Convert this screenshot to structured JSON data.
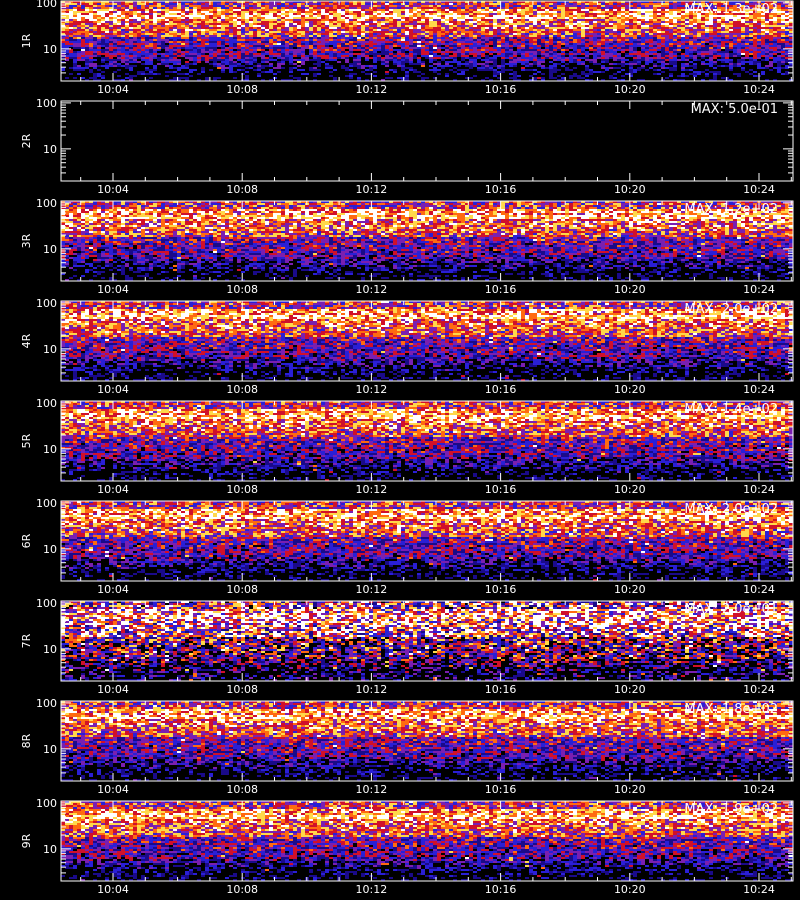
{
  "chart_data": {
    "type": "heatmap",
    "colors": {
      "background": "#000000",
      "axes": "#ffffff",
      "text": "#ffffff"
    },
    "colormap": [
      "#000000",
      "#1a0a8a",
      "#2a1fd6",
      "#7a1fb0",
      "#d0102a",
      "#ff6a10",
      "#ffd84a",
      "#ffffff"
    ],
    "x_ticks": [
      "10:04",
      "10:08",
      "10:12",
      "10:16",
      "10:20",
      "10:24"
    ],
    "y_scale": "log",
    "y_range": [
      2,
      110
    ],
    "y_ticks": [
      "10",
      "100"
    ],
    "footer": "",
    "panels": [
      {
        "label": "1R",
        "max_label": "MAX: 1.3e+02",
        "max": 130,
        "empty": false
      },
      {
        "label": "2R",
        "max_label": "MAX: 5.0e-01",
        "max": 0.5,
        "empty": true
      },
      {
        "label": "3R",
        "max_label": "MAX: 1.2e+02",
        "max": 120,
        "empty": false
      },
      {
        "label": "4R",
        "max_label": "MAX: 2.0e+02",
        "max": 200,
        "empty": false
      },
      {
        "label": "5R",
        "max_label": "MAX: 1.4e+02",
        "max": 140,
        "empty": false
      },
      {
        "label": "6R",
        "max_label": "MAX: 2.0e+02",
        "max": 200,
        "empty": false
      },
      {
        "label": "7R",
        "max_label": "MAX: 2.0e+01",
        "max": 20,
        "empty": false
      },
      {
        "label": "8R",
        "max_label": "MAX: 1.8e+02",
        "max": 180,
        "empty": false
      },
      {
        "label": "9R",
        "max_label": "MAX: 1.9e+02",
        "max": 190,
        "empty": false
      }
    ]
  }
}
